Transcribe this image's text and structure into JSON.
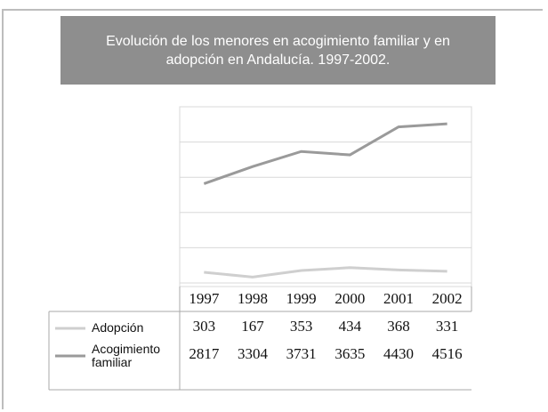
{
  "chart_data": {
    "type": "line",
    "title": "Evolución de los menores en acogimiento familiar y en adopción en Andalucía. 1997-2002.",
    "categories": [
      "1997",
      "1998",
      "1999",
      "2000",
      "2001",
      "2002"
    ],
    "series": [
      {
        "name": "Adopción",
        "color": "#cfcfcf",
        "values": [
          303,
          167,
          353,
          434,
          368,
          331
        ]
      },
      {
        "name": "Acogimiento familiar",
        "color": "#9a9a9a",
        "values": [
          2817,
          3304,
          3731,
          3635,
          4430,
          4516
        ]
      }
    ],
    "ylim": [
      0,
      5000
    ],
    "yticks": [
      0,
      1000,
      2000,
      3000,
      4000,
      5000
    ],
    "grid": true
  }
}
